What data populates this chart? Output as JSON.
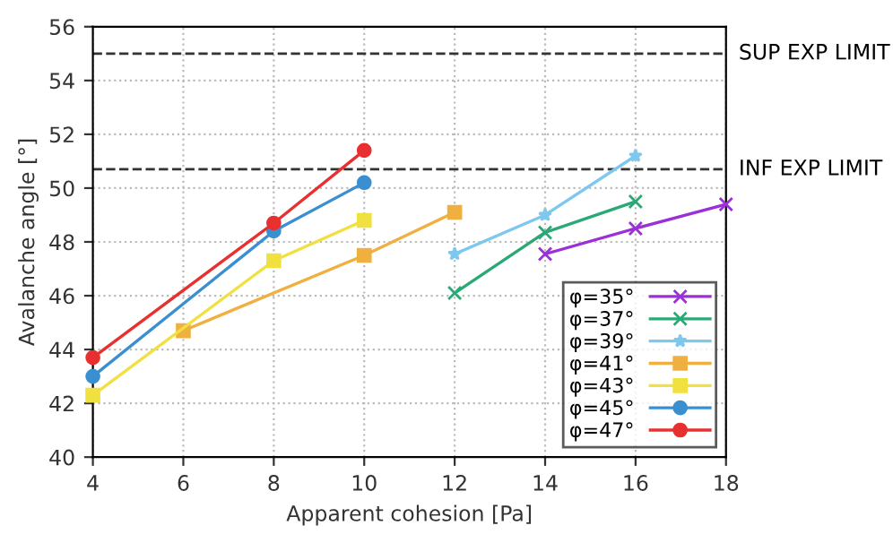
{
  "chart_data": {
    "type": "line",
    "xlabel": "Apparent cohesion [Pa]",
    "ylabel": "Avalanche angle [°]",
    "xlim": [
      4,
      18
    ],
    "xticks": [
      4,
      6,
      8,
      10,
      12,
      14,
      16,
      18
    ],
    "ylim": [
      40,
      56
    ],
    "yticks": [
      40,
      42,
      44,
      46,
      48,
      50,
      52,
      54,
      56
    ],
    "grid": true,
    "legend": "bottom right",
    "series": [
      {
        "name": "φ=35°",
        "color": "#9b30d9",
        "marker": "cross",
        "x": [
          14,
          16,
          18
        ],
        "values": [
          47.55,
          48.5,
          49.4
        ]
      },
      {
        "name": "φ=37°",
        "color": "#2aa876",
        "marker": "cross",
        "x": [
          12,
          14,
          16
        ],
        "values": [
          46.1,
          48.35,
          49.5
        ]
      },
      {
        "name": "φ=39°",
        "color": "#7ec8f0",
        "marker": "star",
        "x": [
          12,
          14,
          16
        ],
        "values": [
          47.55,
          49.0,
          51.2
        ]
      },
      {
        "name": "φ=41°",
        "color": "#f0b040",
        "marker": "square",
        "x": [
          6,
          10,
          12
        ],
        "values": [
          44.7,
          47.5,
          49.1
        ]
      },
      {
        "name": "φ=43°",
        "color": "#f0e040",
        "marker": "square",
        "x": [
          4,
          8,
          10
        ],
        "values": [
          42.3,
          47.3,
          48.8
        ]
      },
      {
        "name": "φ=45°",
        "color": "#3a8fd0",
        "marker": "circle",
        "x": [
          4,
          8,
          10
        ],
        "values": [
          43.0,
          48.4,
          50.2
        ]
      },
      {
        "name": "φ=47°",
        "color": "#e83030",
        "marker": "circle",
        "x": [
          4,
          8,
          10
        ],
        "values": [
          43.7,
          48.7,
          51.4
        ]
      }
    ],
    "ref_lines": [
      {
        "axis": "y",
        "value": 55,
        "label": "SUP EXP LIMIT",
        "color": "#333333",
        "line_style": "dashed"
      },
      {
        "axis": "y",
        "value": 50.7,
        "label": "INF EXP LIMIT",
        "color": "#333333",
        "line_style": "dashed"
      }
    ]
  }
}
